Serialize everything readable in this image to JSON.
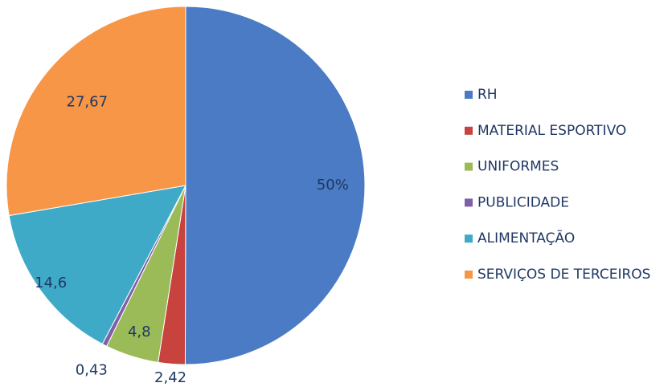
{
  "chart_data": {
    "type": "pie",
    "categories": [
      "RH",
      "MATERIAL ESPORTIVO",
      "UNIFORMES",
      "PUBLICIDADE",
      "ALIMENTAÇÃO",
      "SERVIÇOS DE TERCEIROS"
    ],
    "values": [
      50,
      2.42,
      4.8,
      0.43,
      14.6,
      27.67
    ],
    "value_labels": [
      "50%",
      "2,42",
      "4,8",
      "0,43",
      "14,6",
      "27,67"
    ],
    "colors": [
      "#4a7bc4",
      "#c8423e",
      "#9bbb59",
      "#7f5fa8",
      "#3fa9c8",
      "#f79646"
    ],
    "legend": "right"
  }
}
